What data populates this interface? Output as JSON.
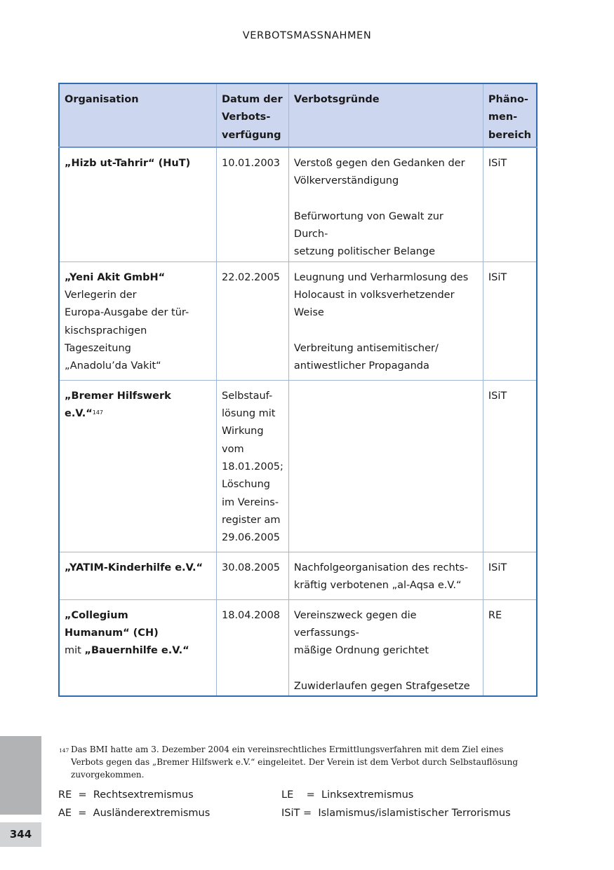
{
  "running_head": "VERBOTSMASSNAHMEN",
  "table": {
    "headers": [
      "Organisation",
      "Datum der\nVerbots-\nverfügung",
      "Verbotsgründe",
      "Phäno-\nmen-\nbereich"
    ],
    "rows": [
      {
        "org_bold": "„Hizb ut-Tahrir“ (HuT)",
        "date": "10.01.2003",
        "reasons": "Verstoß gegen den Gedanken der\nVölkerverständigung\n\nBefürwortung von Gewalt zur Durch-\nsetzung politischer Belange",
        "area": "ISiT"
      },
      {
        "org_bold": "„Yeni Akit GmbH“",
        "org_rest": "Verlegerin der\nEuropa-Ausgabe der tür-\nkischsprachigen Tageszeitung\n„Anadolu’da Vakit“",
        "date": "22.02.2005",
        "reasons": "Leugnung und Verharmlosung des\nHolocaust in volksverhetzender\nWeise\n\nVerbreitung antisemitischer/\nantiwestlicher Propaganda",
        "area": "ISiT"
      },
      {
        "org_bold": "„Bremer Hilfswerk e.V.“",
        "footnote_ref": "147",
        "date": "Selbstauf-\nlösung mit\nWirkung\nvom\n18.01.2005;\nLöschung\nim Vereins-\nregister am\n29.06.2005",
        "reasons": "",
        "area": "ISiT"
      },
      {
        "org_bold": "„YATIM-Kinderhilfe e.V.“",
        "date": "30.08.2005",
        "reasons": "Nachfolgeorganisation des rechts-\nkräftig verbotenen „al-Aqsa e.V.“",
        "area": "ISiT"
      },
      {
        "org_bold": "„Collegium\nHumanum“ (CH)",
        "org_mit": "mit ",
        "org_bold2": "„Bauernhilfe e.V.“",
        "date": "18.04.2008",
        "reasons": "Vereinszweck gegen die verfassungs-\nmäßige Ordnung gerichtet\n\nZuwiderlaufen gegen Strafgesetze",
        "area": "RE"
      }
    ]
  },
  "footnote": {
    "number": "147",
    "text": "Das BMI hatte am 3. Dezember 2004 ein vereinsrechtliches Ermittlungsverfahren mit dem Ziel eines Verbots gegen das „Bremer Hilfswerk e.V.“ eingeleitet. Der Verein ist dem Verbot durch Selbstauflösung zuvorgekommen."
  },
  "legend": {
    "left": [
      "RE  =  Rechtsextremismus",
      "AE  =  Ausländerextremismus"
    ],
    "right": [
      "LE    =  Linksextremismus",
      "ISiT =  Islamismus/islamistischer Terrorismus"
    ]
  },
  "page_number": "344",
  "colors": {
    "table_border": "#2e6db4",
    "header_bg": "#ccd6ee",
    "side_tab": "#b2b3b5"
  }
}
